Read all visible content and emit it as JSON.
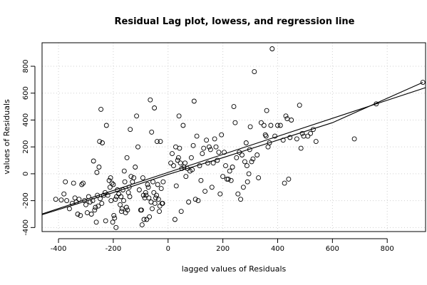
{
  "chart_data": {
    "type": "scatter",
    "title": "Residual Lag plot, lowess, and regression line",
    "xlabel": "lagged values of Residuals",
    "ylabel": "values of Residuals",
    "xlim": [
      -460,
      940
    ],
    "ylim": [
      -430,
      975
    ],
    "x_ticks": [
      -400,
      -200,
      0,
      200,
      400,
      600,
      800
    ],
    "y_ticks": [
      -400,
      -200,
      0,
      200,
      400,
      600,
      800
    ],
    "x_tick_labels": [
      "-400",
      "-200",
      "0",
      "200",
      "400",
      "600",
      "800"
    ],
    "y_tick_labels": [
      "-400",
      "-200",
      "0",
      "200",
      "400",
      "600",
      "800"
    ],
    "grid": true,
    "marker": "open-circle",
    "points": [
      [
        -410,
        -190
      ],
      [
        -390,
        -195
      ],
      [
        -380,
        -150
      ],
      [
        -375,
        -60
      ],
      [
        -370,
        -200
      ],
      [
        -360,
        -260
      ],
      [
        -350,
        -220
      ],
      [
        -345,
        -70
      ],
      [
        -340,
        -180
      ],
      [
        -335,
        -210
      ],
      [
        -330,
        -300
      ],
      [
        -325,
        -190
      ],
      [
        -320,
        -310
      ],
      [
        -315,
        -80
      ],
      [
        -310,
        -70
      ],
      [
        -305,
        -200
      ],
      [
        -300,
        -230
      ],
      [
        -295,
        -290
      ],
      [
        -290,
        -170
      ],
      [
        -285,
        -210
      ],
      [
        -280,
        -300
      ],
      [
        -275,
        -200
      ],
      [
        -272,
        95
      ],
      [
        -268,
        -270
      ],
      [
        -265,
        -250
      ],
      [
        -262,
        -360
      ],
      [
        -260,
        10
      ],
      [
        -258,
        -160
      ],
      [
        -255,
        -240
      ],
      [
        -252,
        50
      ],
      [
        -250,
        240
      ],
      [
        -248,
        -185
      ],
      [
        -245,
        480
      ],
      [
        -242,
        -220
      ],
      [
        -240,
        230
      ],
      [
        -235,
        -160
      ],
      [
        -230,
        -140
      ],
      [
        -228,
        -350
      ],
      [
        -225,
        360
      ],
      [
        -220,
        -160
      ],
      [
        -215,
        -50
      ],
      [
        -212,
        -100
      ],
      [
        -210,
        -30
      ],
      [
        -208,
        -200
      ],
      [
        -205,
        -70
      ],
      [
        -202,
        -360
      ],
      [
        -200,
        -80
      ],
      [
        -198,
        -310
      ],
      [
        -195,
        -330
      ],
      [
        -192,
        -190
      ],
      [
        -190,
        -400
      ],
      [
        -188,
        -170
      ],
      [
        -185,
        -120
      ],
      [
        -180,
        -150
      ],
      [
        -175,
        -230
      ],
      [
        -172,
        -170
      ],
      [
        -170,
        -280
      ],
      [
        -168,
        -260
      ],
      [
        -165,
        -120
      ],
      [
        -162,
        -200
      ],
      [
        -160,
        20
      ],
      [
        -158,
        -60
      ],
      [
        -155,
        -290
      ],
      [
        -152,
        -250
      ],
      [
        -150,
        120
      ],
      [
        -148,
        -270
      ],
      [
        -145,
        -140
      ],
      [
        -142,
        -100
      ],
      [
        -140,
        -170
      ],
      [
        -138,
        330
      ],
      [
        -135,
        -20
      ],
      [
        -130,
        -60
      ],
      [
        -125,
        -30
      ],
      [
        -120,
        50
      ],
      [
        -115,
        430
      ],
      [
        -110,
        200
      ],
      [
        -105,
        -120
      ],
      [
        -100,
        -270
      ],
      [
        -97,
        -270
      ],
      [
        -95,
        -380
      ],
      [
        -92,
        -30
      ],
      [
        -90,
        -160
      ],
      [
        -88,
        -340
      ],
      [
        -85,
        -180
      ],
      [
        -82,
        -140
      ],
      [
        -80,
        -160
      ],
      [
        -78,
        -340
      ],
      [
        -75,
        -80
      ],
      [
        -72,
        -100
      ],
      [
        -70,
        -180
      ],
      [
        -68,
        -320
      ],
      [
        -65,
        550
      ],
      [
        -62,
        -210
      ],
      [
        -60,
        310
      ],
      [
        -58,
        -260
      ],
      [
        -55,
        -60
      ],
      [
        -52,
        -140
      ],
      [
        -50,
        490
      ],
      [
        -48,
        -220
      ],
      [
        -45,
        -180
      ],
      [
        -42,
        -160
      ],
      [
        -40,
        240
      ],
      [
        -38,
        -80
      ],
      [
        -35,
        -190
      ],
      [
        -32,
        -280
      ],
      [
        -30,
        -240
      ],
      [
        -28,
        240
      ],
      [
        -25,
        -110
      ],
      [
        -22,
        -220
      ],
      [
        -20,
        -220
      ],
      [
        -18,
        -60
      ],
      [
        10,
        80
      ],
      [
        15,
        150
      ],
      [
        20,
        60
      ],
      [
        25,
        -340
      ],
      [
        28,
        200
      ],
      [
        30,
        -90
      ],
      [
        35,
        100
      ],
      [
        38,
        120
      ],
      [
        40,
        430
      ],
      [
        42,
        190
      ],
      [
        45,
        80
      ],
      [
        48,
        -280
      ],
      [
        50,
        40
      ],
      [
        55,
        360
      ],
      [
        58,
        50
      ],
      [
        62,
        80
      ],
      [
        65,
        -20
      ],
      [
        70,
        40
      ],
      [
        75,
        -210
      ],
      [
        80,
        20
      ],
      [
        85,
        120
      ],
      [
        88,
        30
      ],
      [
        92,
        210
      ],
      [
        95,
        540
      ],
      [
        100,
        -190
      ],
      [
        105,
        280
      ],
      [
        110,
        -200
      ],
      [
        115,
        60
      ],
      [
        120,
        -50
      ],
      [
        125,
        150
      ],
      [
        130,
        190
      ],
      [
        135,
        -130
      ],
      [
        140,
        250
      ],
      [
        145,
        80
      ],
      [
        150,
        200
      ],
      [
        155,
        180
      ],
      [
        160,
        -100
      ],
      [
        165,
        80
      ],
      [
        170,
        260
      ],
      [
        175,
        200
      ],
      [
        180,
        100
      ],
      [
        185,
        160
      ],
      [
        190,
        -150
      ],
      [
        195,
        290
      ],
      [
        200,
        -20
      ],
      [
        205,
        160
      ],
      [
        210,
        60
      ],
      [
        215,
        -40
      ],
      [
        220,
        -40
      ],
      [
        225,
        20
      ],
      [
        230,
        -50
      ],
      [
        235,
        50
      ],
      [
        240,
        500
      ],
      [
        245,
        380
      ],
      [
        250,
        120
      ],
      [
        255,
        -150
      ],
      [
        260,
        160
      ],
      [
        265,
        -190
      ],
      [
        270,
        140
      ],
      [
        275,
        -100
      ],
      [
        280,
        90
      ],
      [
        285,
        230
      ],
      [
        288,
        60
      ],
      [
        290,
        -60
      ],
      [
        295,
        0
      ],
      [
        298,
        180
      ],
      [
        300,
        350
      ],
      [
        305,
        90
      ],
      [
        310,
        110
      ],
      [
        315,
        760
      ],
      [
        325,
        140
      ],
      [
        330,
        -30
      ],
      [
        340,
        380
      ],
      [
        350,
        360
      ],
      [
        355,
        290
      ],
      [
        358,
        280
      ],
      [
        360,
        470
      ],
      [
        365,
        200
      ],
      [
        370,
        230
      ],
      [
        375,
        360
      ],
      [
        380,
        930
      ],
      [
        390,
        280
      ],
      [
        400,
        360
      ],
      [
        410,
        360
      ],
      [
        420,
        250
      ],
      [
        425,
        -70
      ],
      [
        430,
        430
      ],
      [
        435,
        410
      ],
      [
        440,
        -40
      ],
      [
        445,
        270
      ],
      [
        450,
        400
      ],
      [
        470,
        260
      ],
      [
        480,
        510
      ],
      [
        485,
        190
      ],
      [
        490,
        300
      ],
      [
        495,
        280
      ],
      [
        510,
        280
      ],
      [
        520,
        300
      ],
      [
        530,
        330
      ],
      [
        540,
        240
      ],
      [
        680,
        260
      ],
      [
        760,
        520
      ],
      [
        930,
        680
      ]
    ],
    "lines": [
      {
        "name": "regression",
        "x": [
          -460,
          940
        ],
        "y": [
          -299,
          641
        ]
      },
      {
        "name": "lowess",
        "x": [
          -460,
          -200,
          0,
          200,
          400,
          600,
          930
        ],
        "y": [
          -305,
          -140,
          -5,
          120,
          250,
          380,
          680
        ]
      }
    ]
  }
}
